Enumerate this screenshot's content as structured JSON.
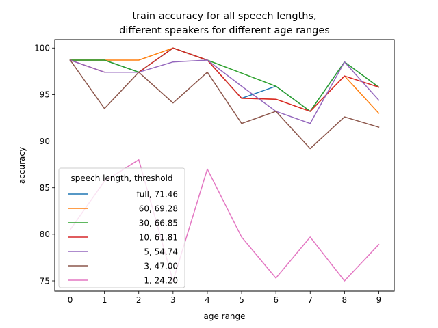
{
  "chart_data": {
    "type": "line",
    "title_line1": "train accuracy for all speech lengths,",
    "title_line2": "different speakers for different age ranges",
    "xlabel": "age range",
    "ylabel": "accuracy",
    "x": [
      0,
      1,
      2,
      3,
      4,
      5,
      6,
      7,
      8,
      9
    ],
    "xlim": [
      -0.45,
      9.45
    ],
    "ylim": [
      73.9,
      100.9
    ],
    "yticks": [
      75,
      80,
      85,
      90,
      95,
      100
    ],
    "xticks": [
      0,
      1,
      2,
      3,
      4,
      5,
      6,
      7,
      8,
      9
    ],
    "grid": false,
    "legend_title": "speech length, threshold",
    "legend_position": "lower-left",
    "series": [
      {
        "name": "full, 71.46",
        "color": "#1f77b4",
        "values": [
          98.7,
          98.7,
          97.4,
          100.0,
          98.7,
          94.6,
          95.9,
          93.2,
          98.5,
          95.8
        ]
      },
      {
        "name": "60, 69.28",
        "color": "#ff7f0e",
        "values": [
          98.7,
          98.7,
          98.7,
          100.0,
          98.7,
          94.6,
          94.5,
          93.2,
          97.0,
          93.0
        ]
      },
      {
        "name": "30, 66.85",
        "color": "#2ca02c",
        "values": [
          98.7,
          98.7,
          97.4,
          100.0,
          98.7,
          97.3,
          95.9,
          93.2,
          98.5,
          95.8
        ]
      },
      {
        "name": "10, 61.81",
        "color": "#d62728",
        "values": [
          98.7,
          97.4,
          97.4,
          100.0,
          98.7,
          94.6,
          94.5,
          93.2,
          97.0,
          95.8
        ]
      },
      {
        "name": "5, 54.74",
        "color": "#9467bd",
        "values": [
          98.7,
          97.4,
          97.4,
          98.5,
          98.7,
          95.9,
          93.2,
          91.9,
          98.5,
          94.4
        ]
      },
      {
        "name": "3, 47.00",
        "color": "#8c564b",
        "values": [
          98.7,
          93.5,
          97.4,
          94.1,
          97.4,
          91.9,
          93.2,
          89.2,
          92.6,
          91.5
        ]
      },
      {
        "name": "1, 24.20",
        "color": "#e377c2",
        "values": [
          80.5,
          85.7,
          88.0,
          75.0,
          87.0,
          79.7,
          75.3,
          79.7,
          75.0,
          78.9
        ]
      }
    ]
  }
}
